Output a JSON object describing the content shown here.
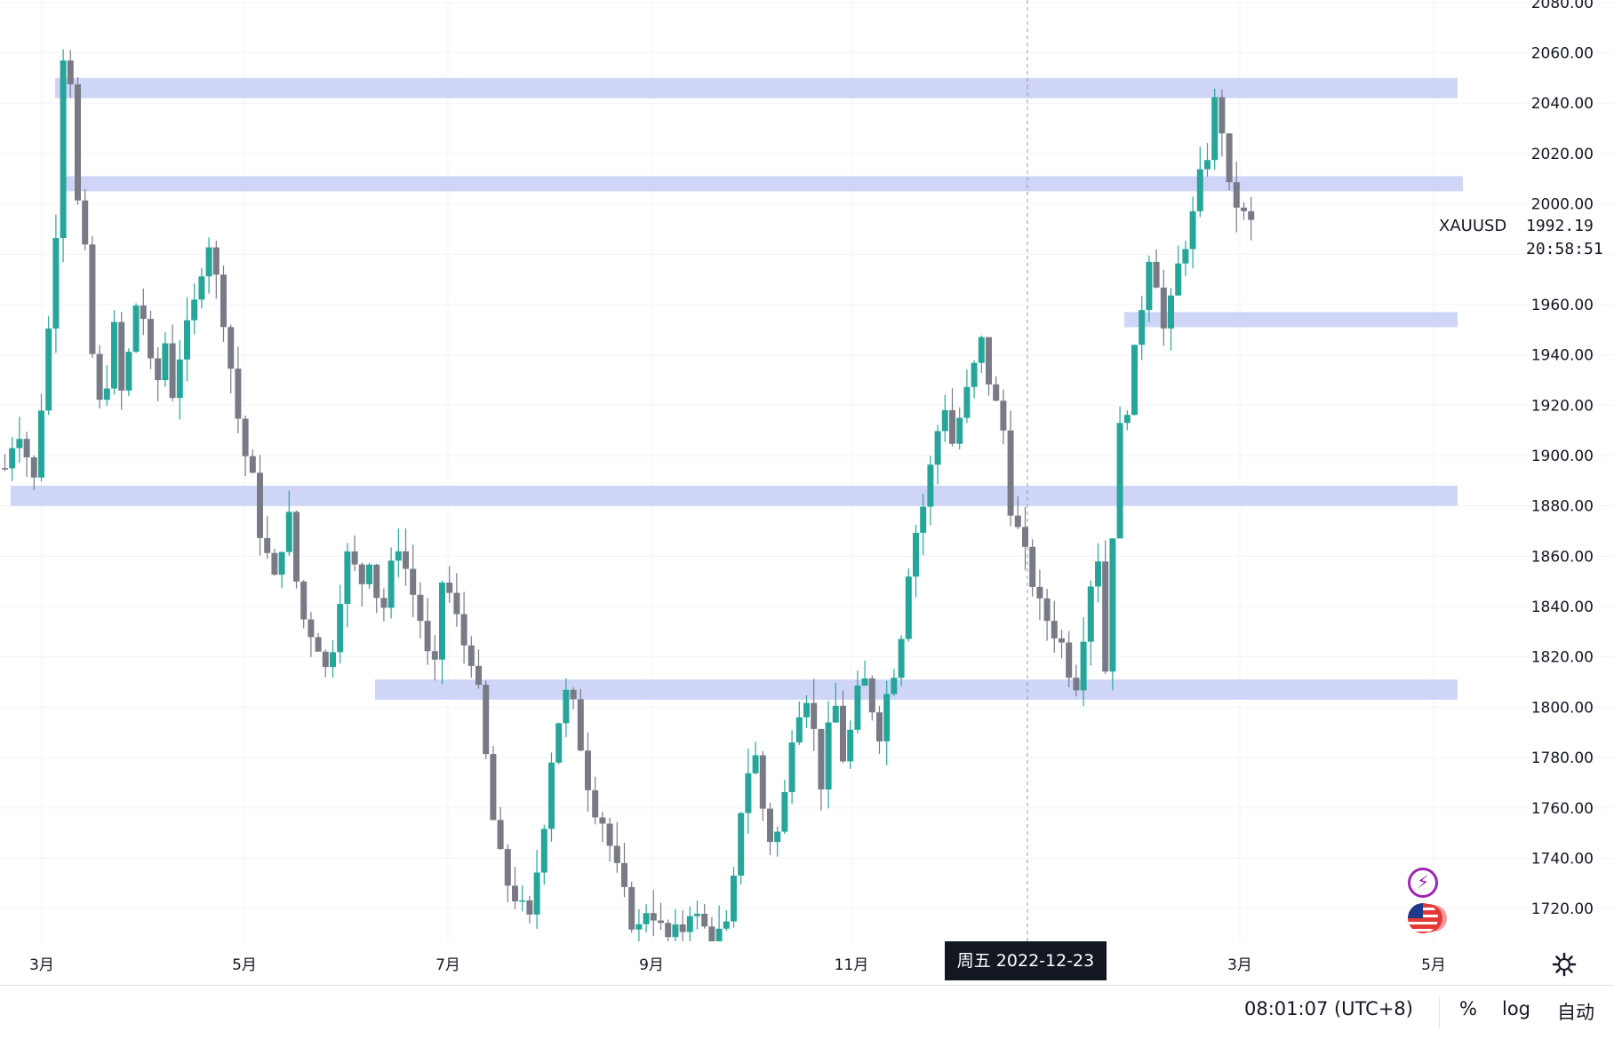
{
  "chart_data": {
    "type": "candlestick",
    "symbol": "XAUUSD",
    "last_price": "1992.19",
    "countdown": "20:58:51",
    "ylim": [
      1707,
      2081
    ],
    "y_ticks": [
      "2080.00",
      "2060.00",
      "2040.00",
      "2020.00",
      "2000.00",
      "1960.00",
      "1940.00",
      "1920.00",
      "1900.00",
      "1880.00",
      "1860.00",
      "1840.00",
      "1820.00",
      "1800.00",
      "1780.00",
      "1760.00",
      "1740.00",
      "1720.00"
    ],
    "x_ticks": [
      "3月",
      "5月",
      "7月",
      "9月",
      "11月",
      "3月",
      "5月"
    ],
    "crosshair_label": "周五 2022-12-23",
    "colors": {
      "up": "#26a69a",
      "down": "#787b86",
      "zone": "#c5cef5",
      "grid": "#f0f3fa"
    },
    "zones": [
      {
        "from": 2042,
        "to": 2050
      },
      {
        "from": 2005,
        "to": 2011
      },
      {
        "from": 1951,
        "to": 1957
      },
      {
        "from": 1880,
        "to": 1888
      },
      {
        "from": 1803,
        "to": 1811
      }
    ],
    "price_path": [
      1895,
      1905,
      1910,
      1900,
      1890,
      1920,
      1950,
      1990,
      2060,
      2050,
      2000,
      1980,
      1940,
      1920,
      1930,
      1950,
      1925,
      1940,
      1960,
      1955,
      1935,
      1930,
      1945,
      1925,
      1940,
      1950,
      1960,
      1975,
      1985,
      1970,
      1955,
      1935,
      1915,
      1900,
      1890,
      1870,
      1860,
      1850,
      1865,
      1875,
      1850,
      1835,
      1830,
      1825,
      1815,
      1825,
      1845,
      1860,
      1855,
      1850,
      1860,
      1845,
      1840,
      1855,
      1865,
      1855,
      1845,
      1835,
      1820,
      1815,
      1850,
      1845,
      1835,
      1825,
      1820,
      1805,
      1780,
      1755,
      1740,
      1730,
      1725,
      1720,
      1715,
      1735,
      1755,
      1780,
      1795,
      1805,
      1800,
      1785,
      1770,
      1760,
      1755,
      1745,
      1735,
      1725,
      1715,
      1712,
      1720,
      1718,
      1712,
      1708,
      1710,
      1712,
      1720,
      1716,
      1712,
      1709,
      1710,
      1712,
      1730,
      1760,
      1775,
      1780,
      1760,
      1748,
      1750,
      1765,
      1790,
      1800,
      1805,
      1790,
      1770,
      1790,
      1800,
      1780,
      1790,
      1805,
      1810,
      1800,
      1790,
      1805,
      1815,
      1830,
      1855,
      1870,
      1880,
      1895,
      1910,
      1920,
      1905,
      1915,
      1925,
      1935,
      1945,
      1930,
      1920,
      1910,
      1880,
      1870,
      1860,
      1850,
      1840,
      1835,
      1830,
      1825,
      1815,
      1810,
      1830,
      1850,
      1860,
      1815,
      1870,
      1910,
      1920,
      1940,
      1960,
      1980,
      1970,
      1950,
      1960,
      1975,
      1985,
      1995,
      2010,
      2020,
      2040,
      2030,
      2005,
      2000,
      1995,
      1992
    ]
  },
  "bottom_bar": {
    "time": "08:01:07 (UTC+8)",
    "percent": "%",
    "log": "log",
    "auto": "自动"
  },
  "icons": [
    "settings-icon",
    "bolt-icon",
    "us-flag-icon"
  ]
}
